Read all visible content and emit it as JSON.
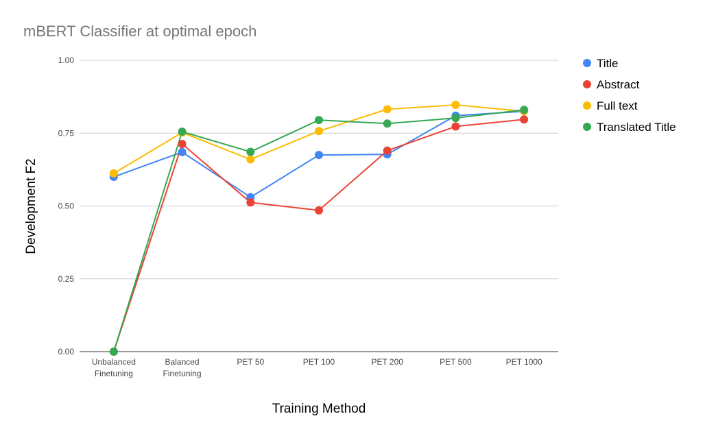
{
  "chart_data": {
    "type": "line",
    "title": "mBERT Classifier at optimal epoch",
    "xlabel": "Training Method",
    "ylabel": "Development F2",
    "categories": [
      [
        "Unbalanced",
        "Finetuning"
      ],
      [
        "Balanced",
        "Finetuning"
      ],
      [
        "PET 50"
      ],
      [
        "PET 100"
      ],
      [
        "PET 200"
      ],
      [
        "PET 500"
      ],
      [
        "PET 1000"
      ]
    ],
    "ylim": [
      0,
      1
    ],
    "yticks": [
      "0.00",
      "0.25",
      "0.50",
      "0.75",
      "1.00"
    ],
    "grid": true,
    "legend_position": "right",
    "series": [
      {
        "name": "Title",
        "color": "#4285F4",
        "values": [
          0.6,
          0.685,
          0.53,
          0.675,
          0.677,
          0.81,
          0.825
        ]
      },
      {
        "name": "Abstract",
        "color": "#EA4335",
        "values": [
          0.0,
          0.713,
          0.512,
          0.485,
          0.69,
          0.773,
          0.797
        ]
      },
      {
        "name": "Full text",
        "color": "#FBBC04",
        "values": [
          0.612,
          0.752,
          0.66,
          0.757,
          0.832,
          0.847,
          0.825
        ]
      },
      {
        "name": "Translated Title",
        "color": "#34A853",
        "values": [
          0.0,
          0.755,
          0.686,
          0.795,
          0.783,
          0.802,
          0.83
        ]
      }
    ]
  }
}
